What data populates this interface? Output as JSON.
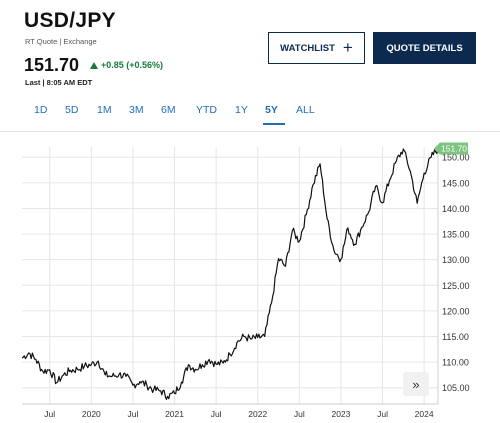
{
  "header": {
    "symbol": "USD/JPY",
    "subtitle": "RT Quote | Exchange",
    "price": "151.70",
    "change": "+0.85 (+0.56%)",
    "last_update": "Last | 8:05 AM EDT",
    "watchlist_label": "WATCHLIST",
    "watchlist_icon": "plus-icon",
    "quote_details_label": "QUOTE DETAILS"
  },
  "colors": {
    "navy": "#0c2a4f",
    "link_blue": "#1f6fb8",
    "positive_green": "#177a3c",
    "price_tag": "#7cc47f",
    "line": "#111111",
    "grid": "#e6e6e6"
  },
  "range_tabs": {
    "items": [
      "1D",
      "5D",
      "1M",
      "3M",
      "6M",
      "YTD",
      "1Y",
      "5Y",
      "ALL"
    ],
    "active": "5Y"
  },
  "expand_button": {
    "icon": "double-chevron-right-icon",
    "label": "»"
  },
  "chart_data": {
    "type": "line",
    "title": "",
    "xlabel": "",
    "ylabel": "",
    "x_tick_labels": [
      "Jul",
      "2020",
      "Jul",
      "2021",
      "Jul",
      "2022",
      "Jul",
      "2023",
      "Jul",
      "2024"
    ],
    "y_ticks": [
      105,
      110,
      115,
      120,
      125,
      130,
      135,
      140,
      145,
      150
    ],
    "y_tick_labels": [
      "105.00",
      "110.00",
      "115.00",
      "120.00",
      "125.00",
      "130.00",
      "135.00",
      "140.00",
      "145.00",
      "150.00"
    ],
    "ylim": [
      102.6,
      152.0
    ],
    "xlim": [
      "2019-03",
      "2024-03"
    ],
    "grid": true,
    "current_price_label": "151.70",
    "series": [
      {
        "x": [
          "2019-03",
          "2019-04",
          "2019-05",
          "2019-06",
          "2019-07",
          "2019-08",
          "2019-09",
          "2019-10",
          "2019-11",
          "2019-12",
          "2020-01",
          "2020-02",
          "2020-03",
          "2020-04",
          "2020-05",
          "2020-06",
          "2020-07",
          "2020-08",
          "2020-09",
          "2020-10",
          "2020-11",
          "2020-12",
          "2021-01",
          "2021-02",
          "2021-03",
          "2021-04",
          "2021-05",
          "2021-06",
          "2021-07",
          "2021-08",
          "2021-09",
          "2021-10",
          "2021-11",
          "2021-12",
          "2022-01",
          "2022-02",
          "2022-03",
          "2022-04",
          "2022-05",
          "2022-06",
          "2022-07",
          "2022-08",
          "2022-09",
          "2022-10",
          "2022-11",
          "2022-12",
          "2023-01",
          "2023-02",
          "2023-03",
          "2023-04",
          "2023-05",
          "2023-06",
          "2023-07",
          "2023-08",
          "2023-09",
          "2023-10",
          "2023-11",
          "2023-12",
          "2024-01",
          "2024-02",
          "2024-03"
        ],
        "values": [
          110.8,
          111.8,
          110.5,
          108.2,
          108.5,
          106.0,
          107.5,
          108.4,
          108.6,
          109.2,
          109.5,
          110.2,
          107.5,
          107.2,
          107.6,
          107.2,
          105.5,
          106.2,
          105.5,
          104.6,
          104.4,
          103.3,
          103.9,
          106.1,
          109.5,
          108.6,
          109.5,
          110.5,
          109.6,
          109.8,
          111.5,
          113.8,
          115.0,
          114.5,
          114.8,
          115.0,
          121.6,
          130.2,
          128.7,
          135.7,
          133.6,
          138.8,
          144.7,
          148.7,
          138.0,
          131.8,
          130.1,
          136.2,
          133.0,
          136.3,
          139.3,
          144.3,
          141.1,
          145.5,
          149.3,
          151.6,
          147.3,
          141.0,
          146.9,
          150.0,
          151.7
        ]
      }
    ]
  }
}
